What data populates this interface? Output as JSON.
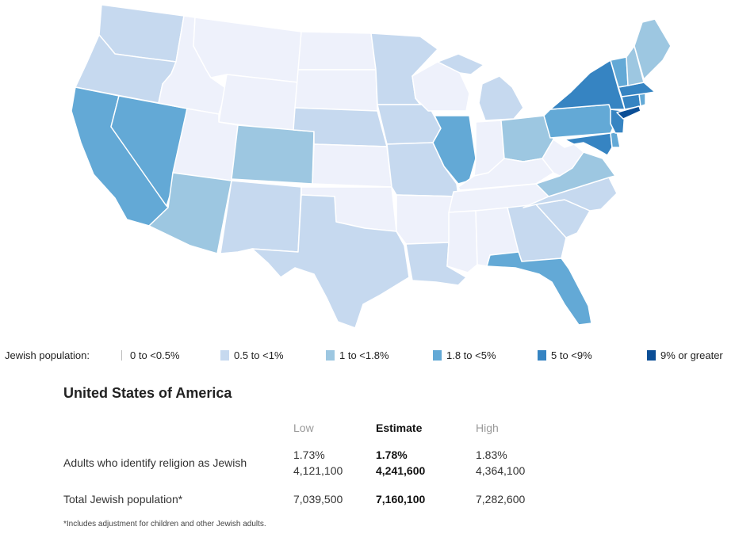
{
  "colors": {
    "c0": "#eef1fb",
    "c1": "#c6d9ef",
    "c2": "#9dc7e1",
    "c3": "#63a9d6",
    "c4": "#3684c2",
    "c5": "#0b4e96"
  },
  "legend": {
    "title": "Jewish population:",
    "items": [
      {
        "label": "0 to <0.5%",
        "color": "#ffffff"
      },
      {
        "label": "0.5 to <1%",
        "color": "#c6d9ef"
      },
      {
        "label": "1 to <1.8%",
        "color": "#9dc7e1"
      },
      {
        "label": "1.8 to <5%",
        "color": "#63a9d6"
      },
      {
        "label": "5 to <9%",
        "color": "#3684c2"
      },
      {
        "label": "9% or greater",
        "color": "#0b4e96"
      }
    ]
  },
  "country": "United States of America",
  "table": {
    "headers": {
      "low": "Low",
      "estimate": "Estimate",
      "high": "High"
    },
    "rows": [
      {
        "label": "Adults who identify religion as Jewish",
        "low": [
          "1.73%",
          "4,121,100"
        ],
        "estimate": [
          "1.78%",
          "4,241,600"
        ],
        "high": [
          "1.83%",
          "4,364,100"
        ]
      },
      {
        "label": "Total Jewish population*",
        "low": [
          "7,039,500"
        ],
        "estimate": [
          "7,160,100"
        ],
        "high": [
          "7,282,600"
        ]
      }
    ]
  },
  "footnote": "*Includes adjustment for children and other Jewish adults."
}
